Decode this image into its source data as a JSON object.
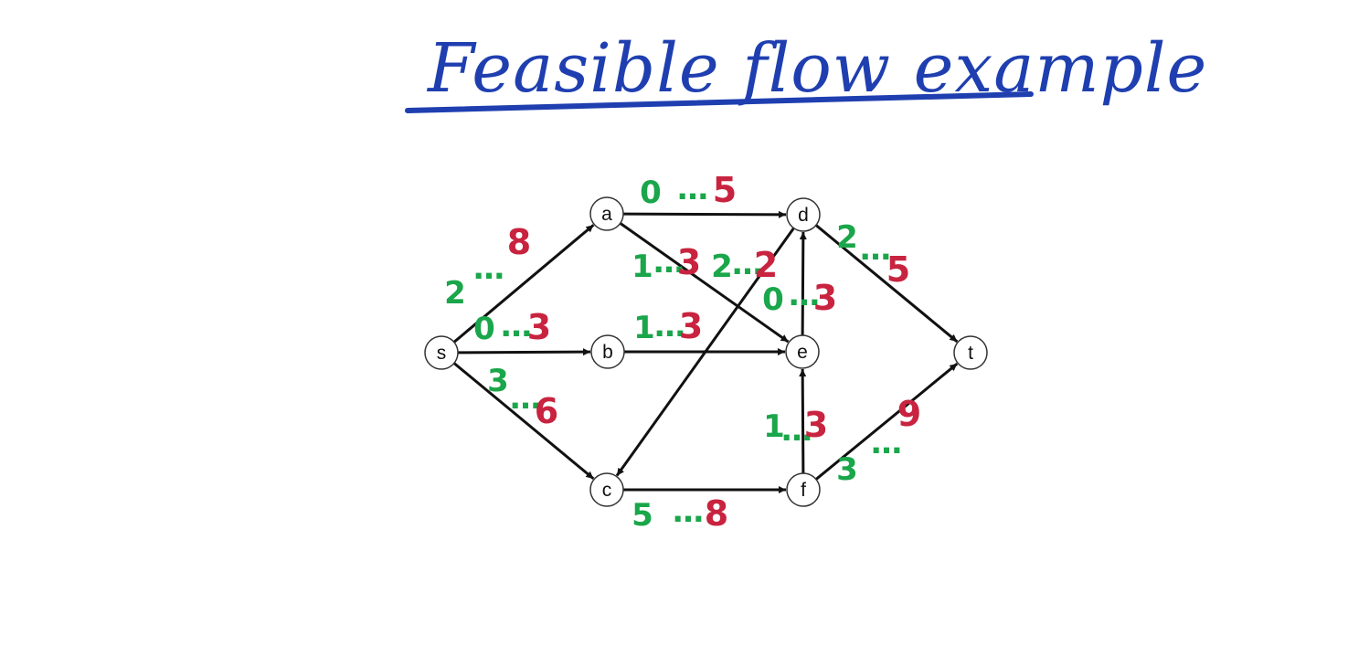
{
  "title": "Feasible flow example",
  "colors": {
    "title": "#1f3fb0",
    "lower_bound": "#1aa64a",
    "capacity": "#c8233f",
    "edge": "#111111",
    "node_stroke": "#333333",
    "node_fill": "#ffffff"
  },
  "nodes": [
    {
      "id": "s",
      "label": "s"
    },
    {
      "id": "a",
      "label": "a"
    },
    {
      "id": "b",
      "label": "b"
    },
    {
      "id": "c",
      "label": "c"
    },
    {
      "id": "d",
      "label": "d"
    },
    {
      "id": "e",
      "label": "e"
    },
    {
      "id": "f",
      "label": "f"
    },
    {
      "id": "t",
      "label": "t"
    }
  ],
  "edges": [
    {
      "from": "s",
      "to": "a",
      "lower": "2",
      "capacity": "8"
    },
    {
      "from": "s",
      "to": "b",
      "lower": "0",
      "capacity": "3"
    },
    {
      "from": "s",
      "to": "c",
      "lower": "3",
      "capacity": "6"
    },
    {
      "from": "a",
      "to": "d",
      "lower": "0",
      "capacity": "5"
    },
    {
      "from": "a",
      "to": "e",
      "lower": "1",
      "capacity": "3"
    },
    {
      "from": "b",
      "to": "e",
      "lower": "1",
      "capacity": "3"
    },
    {
      "from": "d",
      "to": "c",
      "lower": "2",
      "capacity": "2"
    },
    {
      "from": "e",
      "to": "d",
      "lower": "0",
      "capacity": "3"
    },
    {
      "from": "d",
      "to": "t",
      "lower": "2",
      "capacity": "5"
    },
    {
      "from": "f",
      "to": "e",
      "lower": "1",
      "capacity": "3"
    },
    {
      "from": "c",
      "to": "f",
      "lower": "5",
      "capacity": "8"
    },
    {
      "from": "f",
      "to": "t",
      "lower": "3",
      "capacity": "9"
    }
  ]
}
